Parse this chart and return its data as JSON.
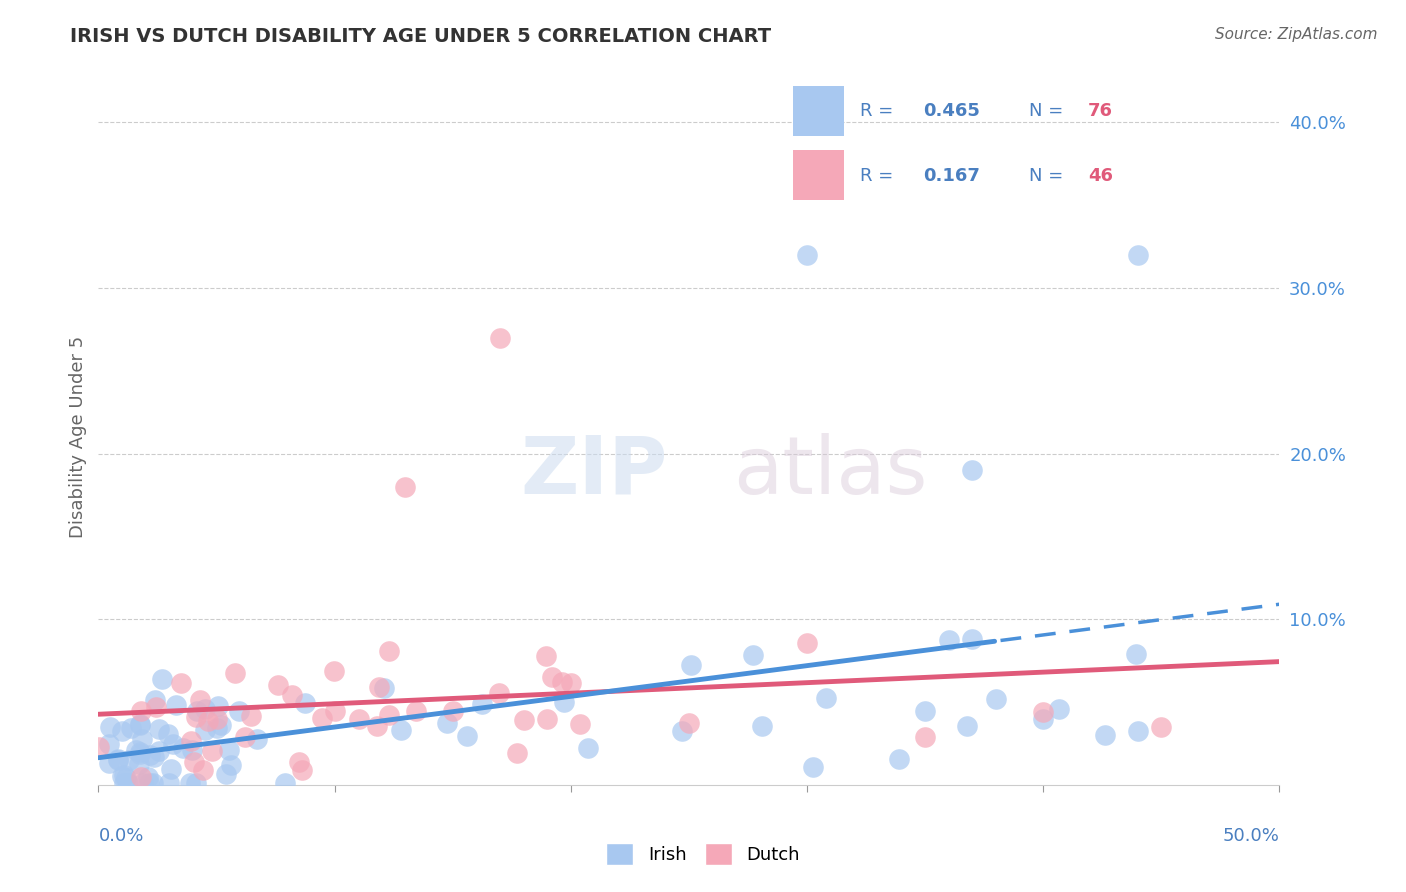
{
  "title": "IRISH VS DUTCH DISABILITY AGE UNDER 5 CORRELATION CHART",
  "source": "Source: ZipAtlas.com",
  "ylabel": "Disability Age Under 5",
  "xlim": [
    0.0,
    0.5
  ],
  "ylim": [
    0.0,
    0.42
  ],
  "yticks": [
    0.1,
    0.2,
    0.3,
    0.4
  ],
  "ytick_labels": [
    "10.0%",
    "20.0%",
    "30.0%",
    "40.0%"
  ],
  "irish_R": 0.465,
  "irish_N": 76,
  "dutch_R": 0.167,
  "dutch_N": 46,
  "irish_color": "#a8c8f0",
  "dutch_color": "#f5a8b8",
  "irish_line_color": "#4a90d9",
  "dutch_line_color": "#e05a7a",
  "legend_text_color": "#4a7fc0",
  "background_color": "#ffffff"
}
